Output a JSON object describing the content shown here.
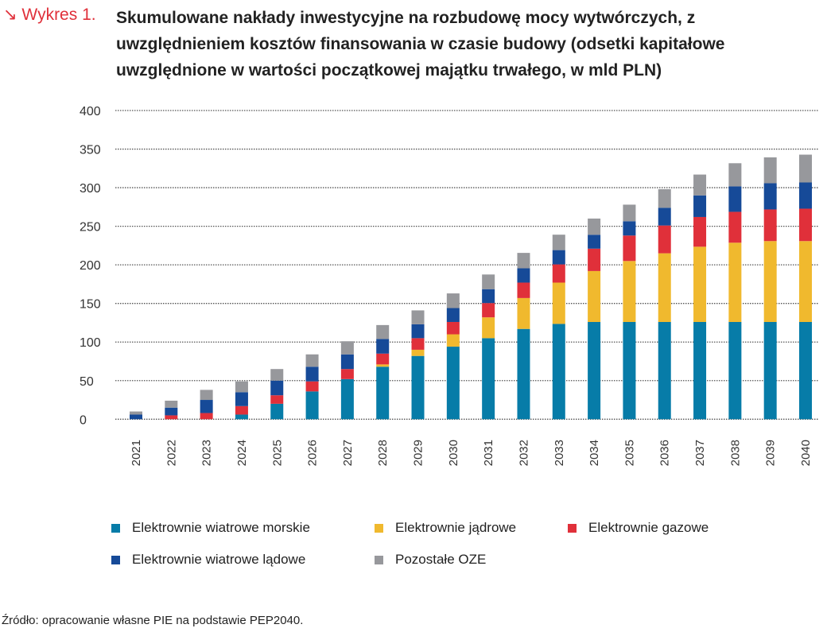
{
  "figure": {
    "label": "↘ Wykres 1.",
    "title": "Skumulowane nakłady inwestycyjne na rozbudowę mocy wytwórczych, z uwzględnieniem kosztów finansowania w czasie budowy (odsetki kapitałowe uwzględnione w wartości początkowej majątku trwałego, w mld PLN)"
  },
  "source": "Źródło: opracowanie własne PIE na podstawie PEP2040.",
  "chart_data": {
    "type": "bar",
    "stacked": true,
    "title": "Skumulowane nakłady inwestycyjne na rozbudowę mocy wytwórczych, w mld PLN",
    "xlabel": "",
    "ylabel": "",
    "ylim": [
      0,
      400
    ],
    "yticks": [
      0,
      50,
      100,
      150,
      200,
      250,
      300,
      350,
      400
    ],
    "grid": true,
    "legend_position": "bottom",
    "categories": [
      "2021",
      "2022",
      "2023",
      "2024",
      "2025",
      "2026",
      "2027",
      "2028",
      "2029",
      "2030",
      "2031",
      "2032",
      "2033",
      "2034",
      "2035",
      "2036",
      "2037",
      "2038",
      "2039",
      "2040"
    ],
    "series": [
      {
        "name": "Elektrownie wiatrowe morskie",
        "color": "#077ca8",
        "values": [
          0,
          0,
          0,
          6,
          20,
          36,
          52,
          68,
          82,
          94,
          105,
          117,
          123.5,
          126,
          126,
          126,
          126,
          126,
          126,
          126
        ]
      },
      {
        "name": "Elektrownie jądrowe",
        "color": "#f0b92e",
        "values": [
          0,
          0,
          0,
          0,
          0,
          0,
          0,
          3,
          8,
          16,
          27,
          40,
          53.5,
          66,
          79,
          89,
          97.5,
          102.7,
          104.8,
          104.8
        ]
      },
      {
        "name": "Elektrownie gazowe",
        "color": "#e0303a",
        "values": [
          0,
          5,
          8,
          11,
          11,
          13,
          13,
          14,
          15,
          16,
          18.5,
          20,
          23.6,
          29,
          33,
          36,
          38.5,
          40,
          41,
          42
        ]
      },
      {
        "name": "Elektrownie wiatrowe lądowe",
        "color": "#164a98",
        "values": [
          6,
          10,
          17,
          18,
          19,
          19,
          19,
          19,
          18,
          18,
          18,
          18.5,
          18.5,
          18,
          18.5,
          23,
          28,
          33,
          34,
          34
        ]
      },
      {
        "name": "Pozostałe OZE",
        "color": "#97989c",
        "values": [
          4,
          9,
          13,
          14,
          15,
          16,
          17,
          18,
          18,
          19,
          19,
          20,
          20,
          21,
          21.5,
          24,
          27,
          30,
          33.5,
          36
        ]
      }
    ]
  }
}
